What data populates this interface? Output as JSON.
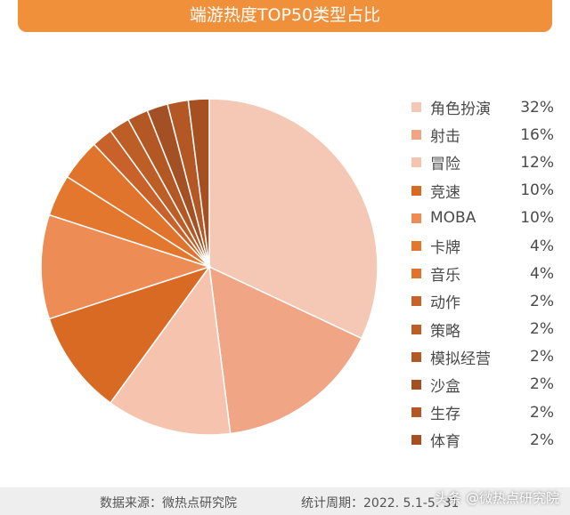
{
  "header": {
    "title": "端游热度TOP50类型占比"
  },
  "chart_data": {
    "type": "pie",
    "title": "端游热度TOP50类型占比",
    "labels": [
      "角色扮演",
      "射击",
      "冒险",
      "竞速",
      "MOBA",
      "卡牌",
      "音乐",
      "动作",
      "策略",
      "模拟经营",
      "沙盒",
      "生存",
      "体育"
    ],
    "values": [
      32,
      16,
      12,
      10,
      10,
      4,
      4,
      2,
      2,
      2,
      2,
      2,
      2
    ],
    "value_labels": [
      "32%",
      "16%",
      "12%",
      "10%",
      "10%",
      "4%",
      "4%",
      "2%",
      "2%",
      "2%",
      "2%",
      "2%",
      "2%"
    ],
    "colors": [
      "#f5c8b5",
      "#f0a585",
      "#f5c3ae",
      "#d96a24",
      "#ee8c55",
      "#e3772e",
      "#e0742c",
      "#c8612a",
      "#be5e27",
      "#b35824",
      "#a35124",
      "#b35825",
      "#a65022"
    ],
    "legend_position": "right"
  },
  "footer": {
    "source": "数据来源：微热点研究院",
    "period": "统计周期：2022. 5.1-5. 31",
    "watermark": "头条 @微热点研究院"
  }
}
